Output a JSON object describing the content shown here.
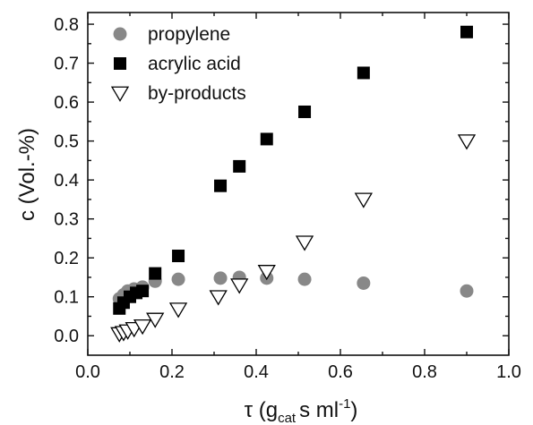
{
  "chart_data": {
    "type": "scatter",
    "xlabel": "τ (g_cat s ml^-1)",
    "xlabel_parts": {
      "main": "τ (g",
      "sub": "cat",
      "mid": "s ml",
      "sup": "-1",
      "end": ")"
    },
    "ylabel": "c (Vol.-%)",
    "xlim": [
      0.0,
      1.0
    ],
    "ylim": [
      -0.05,
      0.83
    ],
    "xticks": [
      "0.0",
      "0.2",
      "0.4",
      "0.6",
      "0.8",
      "1.0"
    ],
    "yticks": [
      "0.0",
      "0.1",
      "0.2",
      "0.3",
      "0.4",
      "0.5",
      "0.6",
      "0.7",
      "0.8"
    ],
    "grid": false,
    "legend_position": "top-left",
    "series": [
      {
        "name": "propylene",
        "marker": "circle",
        "color": "#888888",
        "points": [
          {
            "x": 0.075,
            "y": 0.095
          },
          {
            "x": 0.085,
            "y": 0.105
          },
          {
            "x": 0.095,
            "y": 0.115
          },
          {
            "x": 0.11,
            "y": 0.12
          },
          {
            "x": 0.13,
            "y": 0.125
          },
          {
            "x": 0.16,
            "y": 0.14
          },
          {
            "x": 0.215,
            "y": 0.145
          },
          {
            "x": 0.315,
            "y": 0.148
          },
          {
            "x": 0.36,
            "y": 0.15
          },
          {
            "x": 0.425,
            "y": 0.148
          },
          {
            "x": 0.515,
            "y": 0.145
          },
          {
            "x": 0.655,
            "y": 0.135
          },
          {
            "x": 0.9,
            "y": 0.115
          }
        ]
      },
      {
        "name": "acrylic acid",
        "marker": "square",
        "color": "#000000",
        "points": [
          {
            "x": 0.075,
            "y": 0.07
          },
          {
            "x": 0.085,
            "y": 0.085
          },
          {
            "x": 0.1,
            "y": 0.1
          },
          {
            "x": 0.115,
            "y": 0.11
          },
          {
            "x": 0.13,
            "y": 0.115
          },
          {
            "x": 0.16,
            "y": 0.16
          },
          {
            "x": 0.215,
            "y": 0.205
          },
          {
            "x": 0.315,
            "y": 0.385
          },
          {
            "x": 0.36,
            "y": 0.435
          },
          {
            "x": 0.425,
            "y": 0.505
          },
          {
            "x": 0.515,
            "y": 0.575
          },
          {
            "x": 0.655,
            "y": 0.675
          },
          {
            "x": 0.9,
            "y": 0.78
          }
        ]
      },
      {
        "name": "by-products",
        "marker": "triangle-down-open",
        "color": "#000000",
        "points": [
          {
            "x": 0.075,
            "y": 0.005
          },
          {
            "x": 0.085,
            "y": 0.008
          },
          {
            "x": 0.095,
            "y": 0.012
          },
          {
            "x": 0.11,
            "y": 0.018
          },
          {
            "x": 0.13,
            "y": 0.025
          },
          {
            "x": 0.16,
            "y": 0.042
          },
          {
            "x": 0.215,
            "y": 0.068
          },
          {
            "x": 0.31,
            "y": 0.1
          },
          {
            "x": 0.36,
            "y": 0.13
          },
          {
            "x": 0.425,
            "y": 0.165
          },
          {
            "x": 0.515,
            "y": 0.24
          },
          {
            "x": 0.655,
            "y": 0.35
          },
          {
            "x": 0.9,
            "y": 0.5
          }
        ]
      }
    ]
  }
}
